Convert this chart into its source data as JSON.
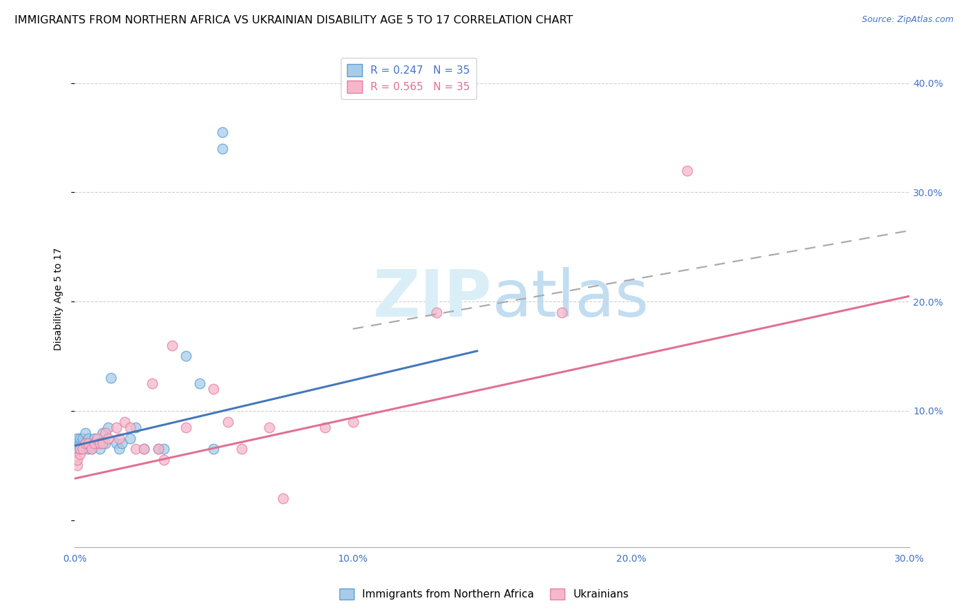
{
  "title": "IMMIGRANTS FROM NORTHERN AFRICA VS UKRAINIAN DISABILITY AGE 5 TO 17 CORRELATION CHART",
  "source": "Source: ZipAtlas.com",
  "ylabel": "Disability Age 5 to 17",
  "xlim": [
    0.0,
    0.3
  ],
  "ylim": [
    -0.025,
    0.43
  ],
  "xticks": [
    0.0,
    0.05,
    0.1,
    0.15,
    0.2,
    0.25,
    0.3
  ],
  "xticklabels": [
    "0.0%",
    "",
    "10.0%",
    "",
    "20.0%",
    "",
    "30.0%"
  ],
  "yticks_right": [
    0.1,
    0.2,
    0.3,
    0.4
  ],
  "ytick_right_labels": [
    "10.0%",
    "20.0%",
    "30.0%",
    "40.0%"
  ],
  "legend1_label": "R = 0.247   N = 35",
  "legend2_label": "R = 0.565   N = 35",
  "color_blue": "#a8cce8",
  "color_pink": "#f5b8cb",
  "color_blue_edge": "#5b9fd4",
  "color_pink_edge": "#e87ea0",
  "watermark_color": "#daeef8",
  "grid_color": "#d0d0d0",
  "background_color": "#ffffff",
  "title_fontsize": 11.5,
  "axis_label_fontsize": 10,
  "tick_fontsize": 10,
  "legend_fontsize": 11,
  "blue_scatter_x": [
    0.001,
    0.001,
    0.001,
    0.002,
    0.002,
    0.002,
    0.003,
    0.003,
    0.003,
    0.004,
    0.004,
    0.005,
    0.005,
    0.006,
    0.006,
    0.007,
    0.008,
    0.009,
    0.01,
    0.011,
    0.012,
    0.013,
    0.015,
    0.016,
    0.017,
    0.02,
    0.022,
    0.025,
    0.03,
    0.032,
    0.04,
    0.045,
    0.05,
    0.053,
    0.053
  ],
  "blue_scatter_y": [
    0.07,
    0.075,
    0.065,
    0.07,
    0.075,
    0.065,
    0.07,
    0.065,
    0.075,
    0.07,
    0.08,
    0.065,
    0.075,
    0.07,
    0.065,
    0.075,
    0.07,
    0.065,
    0.08,
    0.07,
    0.085,
    0.13,
    0.07,
    0.065,
    0.07,
    0.075,
    0.085,
    0.065,
    0.065,
    0.065,
    0.15,
    0.125,
    0.065,
    0.355,
    0.34
  ],
  "pink_scatter_x": [
    0.001,
    0.001,
    0.002,
    0.002,
    0.003,
    0.004,
    0.005,
    0.006,
    0.007,
    0.008,
    0.009,
    0.01,
    0.011,
    0.012,
    0.015,
    0.016,
    0.018,
    0.02,
    0.022,
    0.025,
    0.028,
    0.03,
    0.032,
    0.035,
    0.04,
    0.05,
    0.055,
    0.06,
    0.07,
    0.075,
    0.09,
    0.1,
    0.13,
    0.175,
    0.22
  ],
  "pink_scatter_y": [
    0.05,
    0.055,
    0.06,
    0.065,
    0.065,
    0.07,
    0.07,
    0.065,
    0.07,
    0.075,
    0.07,
    0.07,
    0.08,
    0.075,
    0.085,
    0.075,
    0.09,
    0.085,
    0.065,
    0.065,
    0.125,
    0.065,
    0.055,
    0.16,
    0.085,
    0.12,
    0.09,
    0.065,
    0.085,
    0.02,
    0.085,
    0.09,
    0.19,
    0.19,
    0.32
  ],
  "blue_line_x0": 0.0,
  "blue_line_x1": 0.145,
  "blue_line_y0": 0.068,
  "blue_line_y1": 0.155,
  "pink_line_x0": 0.0,
  "pink_line_x1": 0.3,
  "pink_line_y0": 0.038,
  "pink_line_y1": 0.205,
  "dashed_line_x0": 0.1,
  "dashed_line_x1": 0.3,
  "dashed_line_y0": 0.175,
  "dashed_line_y1": 0.265,
  "bottom_legend_label1": "Immigrants from Northern Africa",
  "bottom_legend_label2": "Ukrainians"
}
